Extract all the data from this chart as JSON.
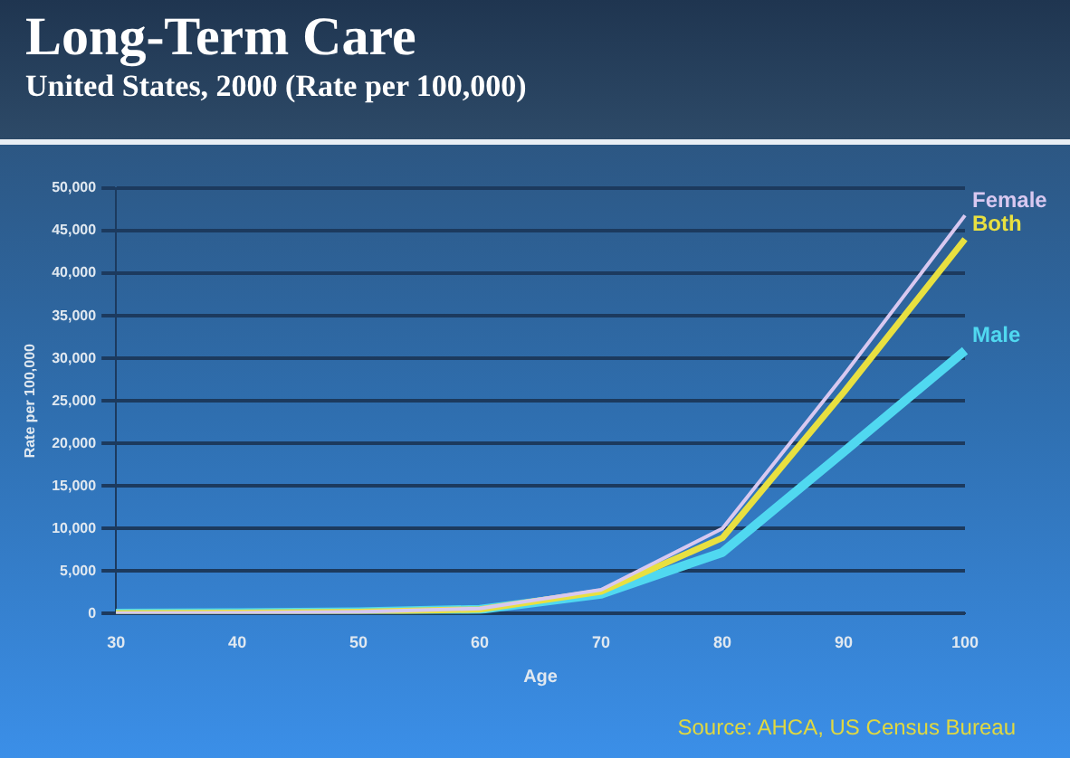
{
  "chart_data": {
    "type": "line",
    "title": "Long-Term Care",
    "subtitle": "United States, 2000 (Rate per 100,000)",
    "xlabel": "Age",
    "ylabel": "Rate per 100,000",
    "categories": [
      "30",
      "40",
      "50",
      "60",
      "70",
      "80",
      "90",
      "100"
    ],
    "series": [
      {
        "name": "Female",
        "color": "#d8c8f0",
        "values": [
          50,
          100,
          200,
          600,
          2800,
          10000,
          28000,
          46800
        ]
      },
      {
        "name": "Both",
        "color": "#e8e040",
        "values": [
          50,
          100,
          200,
          500,
          2600,
          8900,
          26000,
          44000
        ]
      },
      {
        "name": "Male",
        "color": "#50d8f0",
        "values": [
          50,
          100,
          200,
          500,
          2300,
          7200,
          19000,
          30900
        ]
      }
    ],
    "ylim": [
      0,
      50000
    ],
    "yticks": [
      0,
      {
        "value": 5000,
        "label": "5,000"
      },
      {
        "value": 10000,
        "label": "10,000"
      },
      {
        "value": 15000,
        "label": "15,000"
      },
      {
        "value": 20000,
        "label": "20,000"
      },
      {
        "value": 25000,
        "label": "25,000"
      },
      {
        "value": 30000,
        "label": "30,000"
      },
      {
        "value": 35000,
        "label": "35,000"
      },
      {
        "value": 40000,
        "label": "40,000"
      },
      {
        "value": 45000,
        "label": "45,000"
      },
      {
        "value": 50000,
        "label": "50,000"
      }
    ],
    "grid": "y",
    "legend": false,
    "marker": "none",
    "line_style": "solid",
    "annotations": [
      "Source: AHCA, US Census Bureau"
    ]
  }
}
